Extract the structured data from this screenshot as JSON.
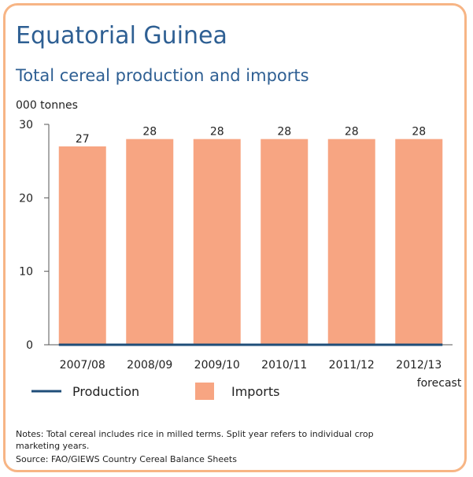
{
  "title": "Equatorial Guinea",
  "subtitle": "Total cereal production and imports",
  "unit_label": "000 tonnes",
  "forecast_label": "forecast",
  "legend": {
    "production": "Production",
    "imports": "Imports"
  },
  "notes": {
    "line1": "Notes: Total cereal includes rice in milled terms. Split year refers to individual crop",
    "line2": "marketing years.",
    "source": "Source: FAO/GIEWS Country Cereal Balance Sheets"
  },
  "colors": {
    "imports": "#f7a582",
    "production": "#1f4e79",
    "title": "#2e5f93",
    "border": "#f7b585"
  },
  "chart_data": {
    "type": "bar",
    "categories": [
      "2007/08",
      "2008/09",
      "2009/10",
      "2010/11",
      "2011/12",
      "2012/13"
    ],
    "series": [
      {
        "name": "Imports",
        "type": "bar",
        "values": [
          27,
          28,
          28,
          28,
          28,
          28
        ]
      },
      {
        "name": "Production",
        "type": "line",
        "values": [
          0,
          0,
          0,
          0,
          0,
          0
        ]
      }
    ],
    "data_labels": [
      "27",
      "28",
      "28",
      "28",
      "28",
      "28"
    ],
    "ylim": [
      0,
      30
    ],
    "yticks": [
      0,
      10,
      20,
      30
    ],
    "ylabel": "000 tonnes",
    "grid": false,
    "legend_position": "bottom"
  }
}
